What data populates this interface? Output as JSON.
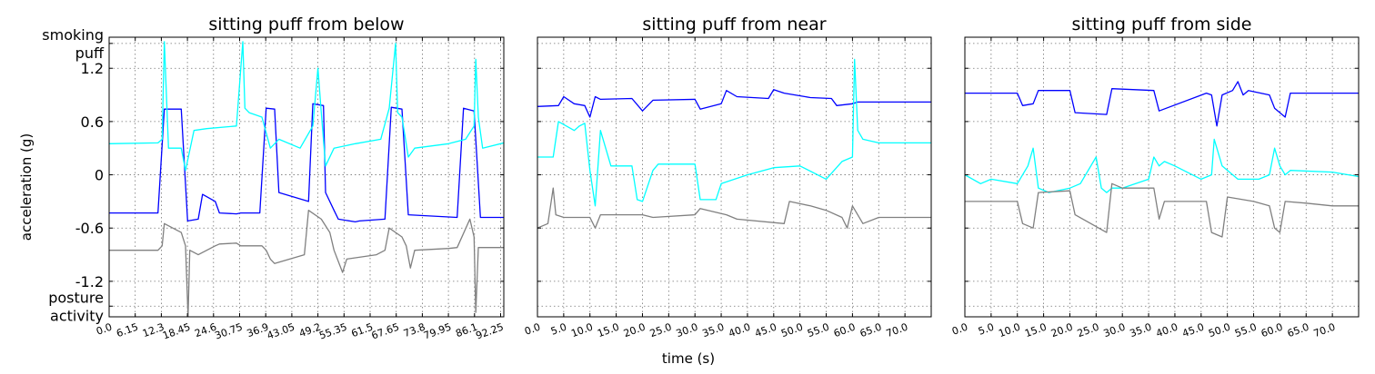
{
  "figure": {
    "ylabel": "acceleration (g)",
    "xlabel": "time (s)"
  },
  "chart_data": [
    {
      "type": "line",
      "title": "sitting puff from below",
      "xlabel": "",
      "ylabel": "acceleration (g)",
      "xlim": [
        0,
        93
      ],
      "ylim": [
        -1.6,
        1.55
      ],
      "xticks": [
        0,
        6.15,
        12.3,
        18.45,
        24.6,
        30.75,
        36.9,
        43.05,
        49.2,
        55.35,
        61.5,
        67.65,
        73.8,
        79.95,
        86.1,
        92.25
      ],
      "xtick_labels": [
        "0.0",
        "6.15",
        "12.3",
        "18.45",
        "24.6",
        "30.75",
        "36.9",
        "43.05",
        "49.2",
        "55.35",
        "61.5",
        "67.65",
        "73.8",
        "79.95",
        "86.1",
        "92.25"
      ],
      "yticks": [
        1.2,
        0.6,
        0,
        -0.6,
        -1.2
      ],
      "ytick_labels": [
        "1.2",
        "0.6",
        "0",
        "-0.6",
        "-1.2"
      ],
      "category_labels": [
        {
          "y": 1.48,
          "lines": [
            "smoking",
            "puff"
          ]
        },
        {
          "y": -1.48,
          "lines": [
            "posture",
            "activity"
          ]
        }
      ],
      "grid": true,
      "series": [
        {
          "color": "#0000ff",
          "x": [
            0,
            11.5,
            13,
            17,
            18.5,
            21,
            22,
            25,
            26,
            30,
            31,
            35.5,
            37,
            39,
            40,
            47,
            48,
            50.5,
            51,
            53,
            54,
            58,
            59,
            65,
            66.5,
            69,
            70.5,
            82,
            83.5,
            86,
            87.5,
            93
          ],
          "y": [
            -0.43,
            -0.43,
            0.74,
            0.74,
            -0.52,
            -0.5,
            -0.22,
            -0.3,
            -0.43,
            -0.44,
            -0.43,
            -0.43,
            0.75,
            0.74,
            -0.2,
            -0.3,
            0.8,
            0.78,
            -0.2,
            -0.4,
            -0.5,
            -0.53,
            -0.52,
            -0.5,
            0.76,
            0.74,
            -0.45,
            -0.48,
            0.75,
            0.72,
            -0.48,
            -0.48
          ]
        },
        {
          "color": "#00ffff",
          "x": [
            0,
            11.5,
            12.5,
            13,
            14,
            17,
            18,
            20,
            23,
            30,
            31.5,
            32,
            33,
            36,
            38,
            40,
            45,
            48,
            49.2,
            50,
            51,
            53,
            58,
            64,
            66,
            67.5,
            68,
            69,
            70.5,
            72,
            80,
            84,
            86,
            86.4,
            87,
            88,
            93
          ],
          "y": [
            0.35,
            0.36,
            0.4,
            1.5,
            0.3,
            0.3,
            0.05,
            0.5,
            0.52,
            0.55,
            1.5,
            0.75,
            0.7,
            0.65,
            0.3,
            0.4,
            0.3,
            0.55,
            1.2,
            0.7,
            0.1,
            0.3,
            0.35,
            0.4,
            0.75,
            1.48,
            0.7,
            0.65,
            0.2,
            0.3,
            0.35,
            0.4,
            0.55,
            1.3,
            0.65,
            0.3,
            0.36
          ]
        },
        {
          "color": "#808080",
          "x": [
            0,
            11.5,
            12.5,
            13,
            17,
            18,
            18.6,
            19,
            21,
            25,
            26,
            30,
            31,
            36,
            37,
            38,
            39,
            46,
            47,
            50,
            52,
            53,
            55,
            56,
            63,
            65,
            66,
            69,
            70,
            71,
            72,
            80,
            82,
            85,
            86,
            86.4,
            87,
            93
          ],
          "y": [
            -0.85,
            -0.85,
            -0.8,
            -0.55,
            -0.65,
            -0.8,
            -1.6,
            -0.85,
            -0.9,
            -0.8,
            -0.78,
            -0.77,
            -0.8,
            -0.8,
            -0.85,
            -0.95,
            -1.0,
            -0.9,
            -0.4,
            -0.5,
            -0.65,
            -0.85,
            -1.1,
            -0.95,
            -0.9,
            -0.85,
            -0.6,
            -0.7,
            -0.8,
            -1.05,
            -0.85,
            -0.83,
            -0.82,
            -0.5,
            -0.7,
            -1.55,
            -0.82,
            -0.82
          ]
        }
      ]
    },
    {
      "type": "line",
      "title": "sitting puff from near",
      "xlabel": "time (s)",
      "ylabel": "",
      "xlim": [
        0,
        75
      ],
      "ylim": [
        -1.6,
        1.55
      ],
      "xticks": [
        0,
        5,
        10,
        15,
        20,
        25,
        30,
        35,
        40,
        45,
        50,
        55,
        60,
        65,
        70
      ],
      "xtick_labels": [
        "0.0",
        "5.0",
        "10.0",
        "15.0",
        "20.0",
        "25.0",
        "30.0",
        "35.0",
        "40.0",
        "45.0",
        "50.0",
        "55.0",
        "60.0",
        "65.0",
        "70.0"
      ],
      "yticks": [
        1.2,
        0.6,
        0,
        -0.6,
        -1.2
      ],
      "ytick_labels": [],
      "grid": true,
      "series": [
        {
          "color": "#0000ff",
          "x": [
            0,
            4,
            5,
            7,
            9,
            10,
            11,
            12,
            18,
            20,
            22,
            30,
            31,
            35,
            36,
            38,
            44,
            45,
            47,
            51,
            52,
            56,
            57,
            60,
            61,
            75
          ],
          "y": [
            0.77,
            0.78,
            0.88,
            0.8,
            0.78,
            0.65,
            0.88,
            0.85,
            0.86,
            0.72,
            0.84,
            0.85,
            0.74,
            0.8,
            0.95,
            0.88,
            0.86,
            0.96,
            0.92,
            0.88,
            0.87,
            0.86,
            0.78,
            0.8,
            0.82,
            0.82
          ]
        },
        {
          "color": "#00ffff",
          "x": [
            0,
            3,
            4,
            7,
            8,
            9,
            10,
            11,
            12,
            14,
            18,
            19,
            20,
            22,
            23,
            30,
            31,
            34,
            35,
            40,
            45,
            50,
            55,
            58,
            60,
            60.4,
            61,
            62,
            65,
            75
          ],
          "y": [
            0.2,
            0.2,
            0.6,
            0.5,
            0.55,
            0.58,
            0.05,
            -0.35,
            0.5,
            0.1,
            0.1,
            -0.28,
            -0.3,
            0.05,
            0.12,
            0.12,
            -0.28,
            -0.28,
            -0.1,
            0.0,
            0.08,
            0.1,
            -0.05,
            0.15,
            0.2,
            1.3,
            0.5,
            0.4,
            0.36,
            0.36
          ]
        },
        {
          "color": "#808080",
          "x": [
            0,
            2,
            3,
            3.5,
            5,
            10,
            11,
            12,
            20,
            22,
            30,
            31,
            36,
            38,
            47,
            48,
            52,
            55,
            58,
            59,
            60,
            62,
            65,
            75
          ],
          "y": [
            -0.6,
            -0.55,
            -0.15,
            -0.45,
            -0.48,
            -0.48,
            -0.6,
            -0.45,
            -0.45,
            -0.48,
            -0.45,
            -0.38,
            -0.45,
            -0.5,
            -0.55,
            -0.3,
            -0.35,
            -0.4,
            -0.48,
            -0.6,
            -0.35,
            -0.55,
            -0.48,
            -0.48
          ]
        }
      ]
    },
    {
      "type": "line",
      "title": "sitting puff from side",
      "xlabel": "",
      "ylabel": "",
      "xlim": [
        0,
        75
      ],
      "ylim": [
        -1.6,
        1.55
      ],
      "xticks": [
        0,
        5,
        10,
        15,
        20,
        25,
        30,
        35,
        40,
        45,
        50,
        55,
        60,
        65,
        70
      ],
      "xtick_labels": [
        "0.0",
        "5.0",
        "10.0",
        "15.0",
        "20.0",
        "25.0",
        "30.0",
        "35.0",
        "40.0",
        "45.0",
        "50.0",
        "55.0",
        "60.0",
        "65.0",
        "70.0"
      ],
      "yticks": [
        1.2,
        0.6,
        0,
        -0.6,
        -1.2
      ],
      "ytick_labels": [],
      "grid": true,
      "series": [
        {
          "color": "#0000ff",
          "x": [
            0,
            10,
            11,
            13,
            14,
            20,
            21,
            27,
            28,
            36,
            37,
            46,
            47,
            48,
            49,
            51,
            52,
            53,
            54,
            58,
            59,
            61,
            62,
            75
          ],
          "y": [
            0.92,
            0.92,
            0.78,
            0.8,
            0.95,
            0.95,
            0.7,
            0.68,
            0.97,
            0.95,
            0.72,
            0.92,
            0.9,
            0.55,
            0.9,
            0.95,
            1.05,
            0.9,
            0.95,
            0.9,
            0.75,
            0.65,
            0.92,
            0.92
          ]
        },
        {
          "color": "#00ffff",
          "x": [
            0,
            3,
            5,
            10,
            12,
            13,
            14,
            16,
            20,
            22,
            25,
            26,
            27,
            28,
            30,
            35,
            36,
            37,
            38,
            40,
            45,
            47,
            47.5,
            49,
            52,
            56,
            58,
            59,
            60,
            61,
            62,
            70,
            75
          ],
          "y": [
            0.0,
            -0.1,
            -0.05,
            -0.1,
            0.1,
            0.3,
            -0.15,
            -0.2,
            -0.15,
            -0.1,
            0.2,
            -0.15,
            -0.2,
            -0.15,
            -0.15,
            -0.05,
            0.2,
            0.1,
            0.15,
            0.1,
            -0.05,
            0.0,
            0.4,
            0.1,
            -0.05,
            -0.05,
            0.0,
            0.3,
            0.1,
            0.0,
            0.05,
            0.03,
            -0.02
          ]
        },
        {
          "color": "#808080",
          "x": [
            0,
            5,
            10,
            11,
            13,
            14,
            20,
            21,
            27,
            28,
            30,
            36,
            37,
            38,
            46,
            47,
            49,
            50,
            55,
            58,
            59,
            60,
            61,
            65,
            70,
            75
          ],
          "y": [
            -0.3,
            -0.3,
            -0.3,
            -0.55,
            -0.6,
            -0.2,
            -0.18,
            -0.45,
            -0.65,
            -0.1,
            -0.15,
            -0.15,
            -0.5,
            -0.3,
            -0.3,
            -0.65,
            -0.7,
            -0.25,
            -0.3,
            -0.35,
            -0.6,
            -0.65,
            -0.3,
            -0.32,
            -0.35,
            -0.35
          ]
        }
      ]
    }
  ]
}
